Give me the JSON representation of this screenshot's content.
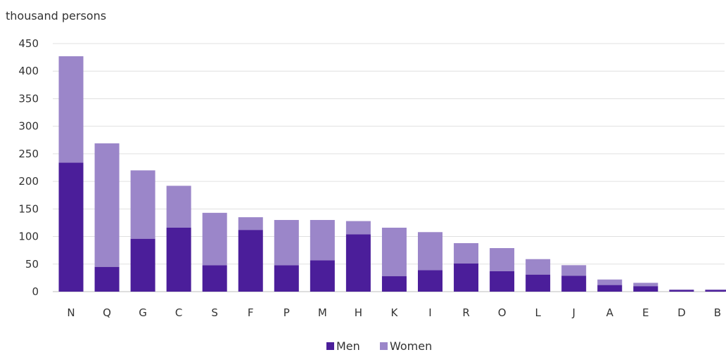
{
  "chart_data": {
    "type": "bar",
    "stacked": true,
    "unit_label": "thousand persons",
    "categories": [
      "N",
      "Q",
      "G",
      "C",
      "S",
      "F",
      "P",
      "M",
      "H",
      "K",
      "I",
      "R",
      "O",
      "L",
      "J",
      "A",
      "E",
      "D",
      "B"
    ],
    "series": [
      {
        "name": "Men",
        "color": "#4B1E9A",
        "values": [
          234,
          45,
          96,
          116,
          48,
          112,
          48,
          57,
          104,
          28,
          39,
          51,
          37,
          31,
          29,
          12,
          10,
          3,
          3
        ]
      },
      {
        "name": "Women",
        "color": "#9B86C9",
        "values": [
          193,
          224,
          124,
          76,
          95,
          23,
          82,
          73,
          24,
          88,
          69,
          37,
          42,
          28,
          19,
          10,
          6,
          1,
          1
        ]
      }
    ],
    "ylim": [
      0,
      450
    ],
    "yticks": [
      0,
      50,
      100,
      150,
      200,
      250,
      300,
      350,
      400,
      450
    ],
    "grid": true,
    "legend_position": "bottom"
  }
}
